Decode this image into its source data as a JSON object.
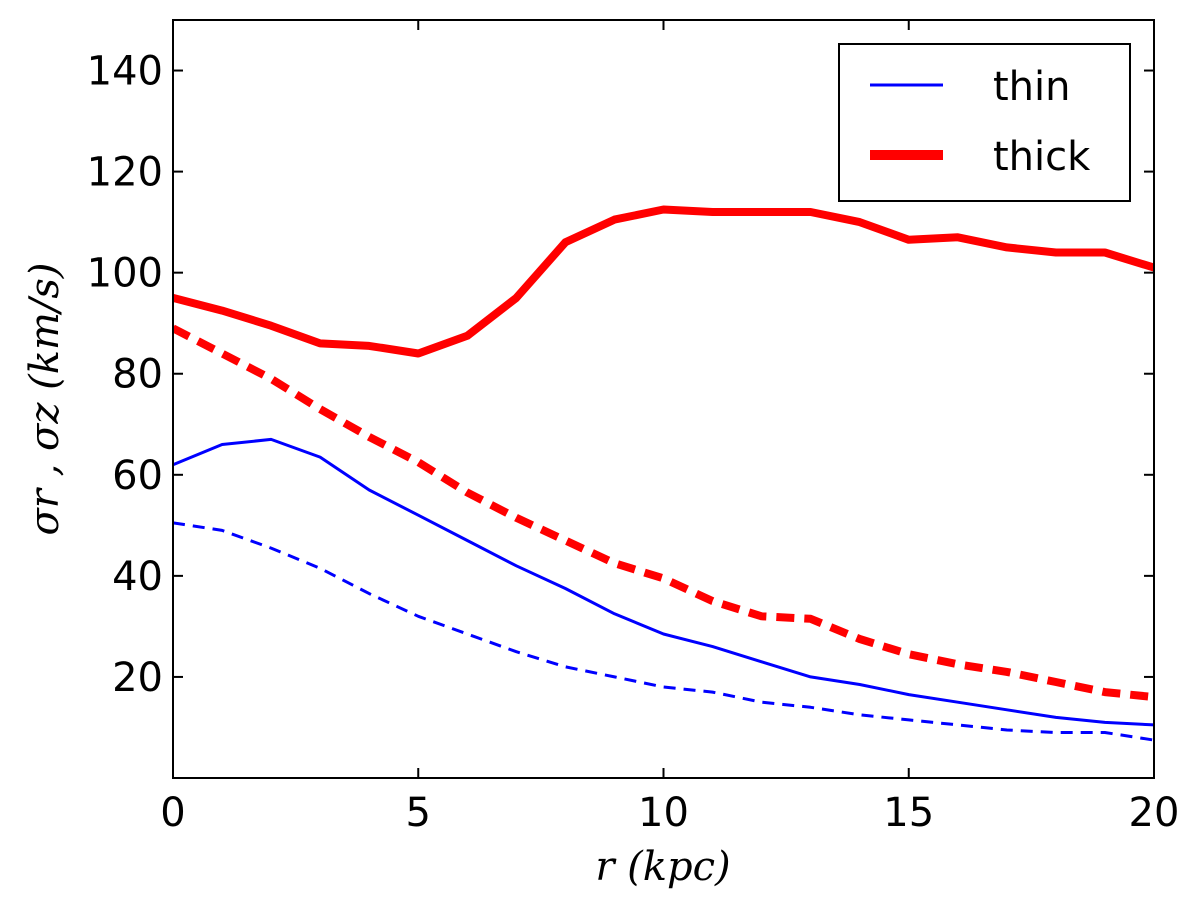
{
  "chart_data": {
    "type": "line",
    "title": "",
    "xlabel": "r (kpc)",
    "ylabel": "σr , σz (km/s)",
    "xlim": [
      0,
      20
    ],
    "ylim": [
      0,
      150
    ],
    "xticks": [
      0,
      5,
      10,
      15,
      20
    ],
    "xtick_labels": [
      "0",
      "5",
      "10",
      "15",
      "20"
    ],
    "yticks": [
      20,
      40,
      60,
      80,
      100,
      120,
      140
    ],
    "ytick_labels": [
      "20",
      "40",
      "60",
      "80",
      "100",
      "120",
      "140"
    ],
    "grid": false,
    "legend_position": "top-right",
    "legend": [
      {
        "label": "thin",
        "color": "#0000ff",
        "style": "thin"
      },
      {
        "label": "thick",
        "color": "#ff0000",
        "style": "thick"
      }
    ],
    "x": [
      0,
      1,
      2,
      3,
      4,
      5,
      6,
      7,
      8,
      9,
      10,
      11,
      12,
      13,
      14,
      15,
      16,
      17,
      18,
      19,
      20
    ],
    "series": [
      {
        "name": "thin σr",
        "group": "thin",
        "dash": "solid",
        "color": "#0000ff",
        "values": [
          62,
          66,
          67,
          63.5,
          57,
          52,
          47,
          42,
          37.5,
          32.5,
          28.5,
          26,
          23,
          20,
          18.5,
          16.5,
          15,
          13.5,
          12,
          11,
          10.5
        ]
      },
      {
        "name": "thin σz",
        "group": "thin",
        "dash": "dashed",
        "color": "#0000ff",
        "values": [
          50.5,
          49,
          45.5,
          41.5,
          36.5,
          32,
          28.5,
          25,
          22,
          20,
          18,
          17,
          15,
          14,
          12.5,
          11.5,
          10.5,
          9.5,
          9,
          9,
          7.5
        ]
      },
      {
        "name": "thick σr",
        "group": "thick",
        "dash": "solid",
        "color": "#ff0000",
        "values": [
          95,
          92.5,
          89.5,
          86,
          85.5,
          84,
          87.5,
          95,
          106,
          110.5,
          112.5,
          112,
          112,
          112,
          110,
          106.5,
          107,
          105,
          104,
          104,
          101
        ]
      },
      {
        "name": "thick σz",
        "group": "thick",
        "dash": "dashed",
        "color": "#ff0000",
        "values": [
          89,
          84,
          79,
          73,
          67.5,
          62.5,
          56.5,
          51.5,
          47,
          42.5,
          39.5,
          35,
          32,
          31.5,
          27.5,
          24.5,
          22.5,
          21,
          19,
          17,
          16
        ]
      }
    ]
  }
}
